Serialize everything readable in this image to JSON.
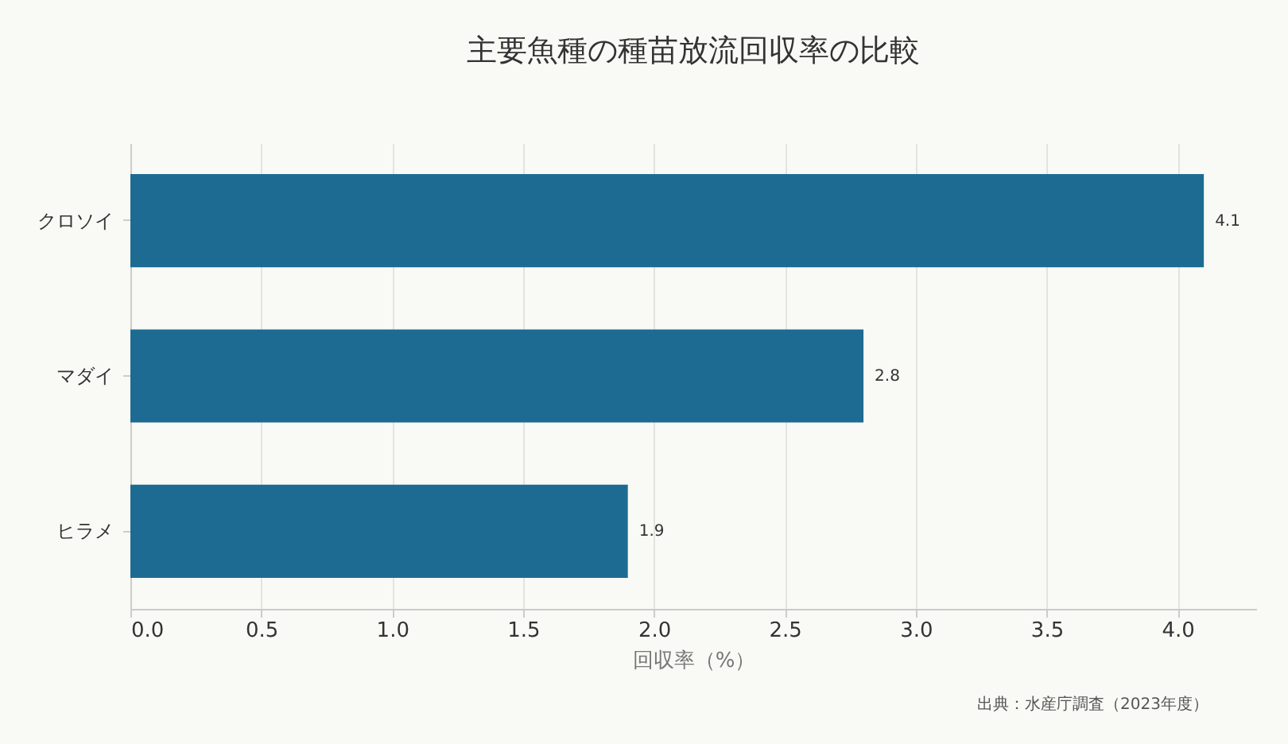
{
  "chart_data": {
    "type": "bar",
    "orientation": "horizontal",
    "title": "主要魚種の種苗放流回収率の比較",
    "xlabel": "回収率（%）",
    "categories": [
      "クロソイ",
      "マダイ",
      "ヒラメ"
    ],
    "series": [
      {
        "color": "#1d6b93",
        "values": [
          4.1,
          2.8,
          1.9
        ]
      }
    ],
    "xlim": [
      0,
      4.3
    ],
    "xticks": [
      {
        "value": 0,
        "label": "0.0"
      },
      {
        "value": 0.5,
        "label": "0.5"
      },
      {
        "value": 1,
        "label": "1.0"
      },
      {
        "value": 1.5,
        "label": "1.5"
      },
      {
        "value": 2,
        "label": "2.0"
      },
      {
        "value": 2.5,
        "label": "2.5"
      },
      {
        "value": 3,
        "label": "3.0"
      },
      {
        "value": 3.5,
        "label": "3.5"
      },
      {
        "value": 4,
        "label": "4.0"
      }
    ],
    "grid": "x",
    "data_labels": true,
    "annotations": [
      "出典：水産庁調査（2023年度）"
    ]
  }
}
